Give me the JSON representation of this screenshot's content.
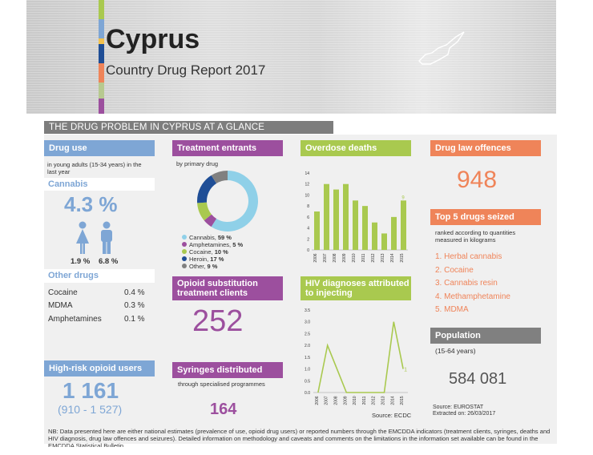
{
  "header": {
    "title": "Cyprus",
    "subtitle": "Country Drug Report 2017"
  },
  "glance_title": "THE DRUG PROBLEM IN CYPRUS AT A GLANCE",
  "drug_use": {
    "title": "Drug use",
    "note": "in young adults (15-34 years) in the last year",
    "cannabis_label": "Cannabis",
    "cannabis_value": "4.3 %",
    "female": "1.9 %",
    "male": "6.8 %",
    "other_label": "Other drugs",
    "other": [
      {
        "name": "Cocaine",
        "value": "0.4 %"
      },
      {
        "name": "MDMA",
        "value": "0.3 %"
      },
      {
        "name": "Amphetamines",
        "value": "0.1 %"
      }
    ]
  },
  "high_risk": {
    "title": "High-risk opioid users",
    "value": "1 161",
    "range": "(910 - 1 527)"
  },
  "treatment": {
    "title": "Treatment entrants",
    "note": "by primary drug",
    "legend": [
      {
        "label": "Cannabis,",
        "value": "59 %",
        "color": "#8fd0e8"
      },
      {
        "label": "Amphetamines,",
        "value": "5 %",
        "color": "#9c4f9e"
      },
      {
        "label": "Cocaine,",
        "value": "10 %",
        "color": "#a9c94f"
      },
      {
        "label": "Heroin,",
        "value": "17 %",
        "color": "#1f4e96"
      },
      {
        "label": "Other,",
        "value": "9 %",
        "color": "#808080"
      }
    ]
  },
  "ost": {
    "title": "Opioid substitution treatment clients",
    "value": "252"
  },
  "syringes": {
    "title": "Syringes distributed",
    "note": "through specialised programmes",
    "value": "164"
  },
  "overdose": {
    "title": "Overdose deaths",
    "last_label": "9"
  },
  "hiv": {
    "title": "HIV diagnoses attributed to injecting",
    "last_label": "1",
    "source": "Source: ECDC"
  },
  "offences": {
    "title": "Drug law offences",
    "value": "948"
  },
  "seized": {
    "title": "Top 5 drugs seized",
    "note": "ranked according to quantities measured in kilograms",
    "items": [
      "1. Herbal cannabis",
      "2. Cocaine",
      "3. Cannabis resin",
      "4. Methamphetamine",
      "5. MDMA"
    ]
  },
  "population": {
    "title": "Population",
    "note": "(15-64 years)",
    "value": "584 081",
    "source1": "Source: EUROSTAT",
    "source2": "Extracted on: 26/03/2017"
  },
  "footnote": "NB: Data presented here are either national estimates (prevalence of use, opioid drug users) or reported numbers through the EMCDDA indicators (treatment clients, syringes, deaths and HIV diagnosis, drug law offences and seizures). Detailed information on methodology and caveats and comments on the limitations in the information set available can be found in the EMCDDA Statistical Bulletin.",
  "chart_data": [
    {
      "type": "bar",
      "title": "Overdose deaths",
      "categories": [
        "2006",
        "2007",
        "2008",
        "2009",
        "2010",
        "2011",
        "2012",
        "2013",
        "2014",
        "2015"
      ],
      "values": [
        7,
        12,
        11,
        12,
        9,
        8,
        5,
        3,
        6,
        9
      ],
      "ylim": [
        0,
        14
      ],
      "yticks": [
        "0",
        "2",
        "4",
        "6",
        "8",
        "10",
        "12",
        "14"
      ]
    },
    {
      "type": "line",
      "title": "HIV diagnoses attributed to injecting",
      "categories": [
        "2006",
        "2007",
        "2008",
        "2009",
        "2010",
        "2011",
        "2012",
        "2013",
        "2014",
        "2015"
      ],
      "values": [
        0,
        2,
        1,
        0,
        0,
        0,
        0,
        0,
        3,
        1
      ],
      "ylim": [
        0,
        3.5
      ],
      "yticks": [
        "0.0",
        "0.5",
        "1.0",
        "1.5",
        "2.0",
        "2.5",
        "3.0",
        "3.5"
      ]
    },
    {
      "type": "pie",
      "title": "Treatment entrants",
      "categories": [
        "Cannabis",
        "Amphetamines",
        "Cocaine",
        "Heroin",
        "Other"
      ],
      "values": [
        59,
        5,
        10,
        17,
        9
      ]
    }
  ]
}
